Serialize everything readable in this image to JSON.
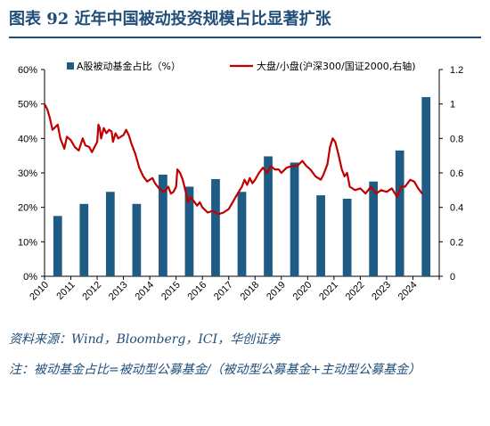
{
  "figure": {
    "title": "图表 92   近年中国被动投资规模占比显著扩张",
    "source": "资料来源：Wind，Bloomberg，ICI，华创证券",
    "note": "注：被动基金占比=被动型公募基金/（被动型公募基金+主动型公募基金）"
  },
  "colors": {
    "bar": "#1f5c85",
    "line": "#c00000",
    "title": "#1f4e79",
    "axis": "#000000"
  },
  "chart_data": {
    "type": "bar",
    "categories": [
      "2010",
      "2011",
      "2012",
      "2013",
      "2014",
      "2015",
      "2016",
      "2017",
      "2018",
      "2019",
      "2020",
      "2021",
      "2022",
      "2023",
      "2024"
    ],
    "series": [
      {
        "name": "A股被动基金占比（%）",
        "type": "bar",
        "axis": "left",
        "values": [
          17.5,
          21,
          24.5,
          21,
          29.5,
          26,
          28.2,
          24.5,
          34.8,
          33,
          23.5,
          22.5,
          27.5,
          36.5,
          52
        ]
      },
      {
        "name": "大盘/小盘(沪深300/国证2000,右轴)",
        "type": "line",
        "axis": "right",
        "points": [
          [
            0.0,
            1.0
          ],
          [
            0.1,
            0.97
          ],
          [
            0.2,
            0.92
          ],
          [
            0.3,
            0.85
          ],
          [
            0.5,
            0.88
          ],
          [
            0.6,
            0.8
          ],
          [
            0.75,
            0.74
          ],
          [
            0.85,
            0.81
          ],
          [
            1.0,
            0.79
          ],
          [
            1.15,
            0.75
          ],
          [
            1.3,
            0.73
          ],
          [
            1.45,
            0.8
          ],
          [
            1.55,
            0.76
          ],
          [
            1.7,
            0.75
          ],
          [
            1.8,
            0.72
          ],
          [
            1.9,
            0.75
          ],
          [
            2.0,
            0.78
          ],
          [
            2.05,
            0.88
          ],
          [
            2.1,
            0.86
          ],
          [
            2.15,
            0.8
          ],
          [
            2.25,
            0.86
          ],
          [
            2.35,
            0.83
          ],
          [
            2.45,
            0.85
          ],
          [
            2.55,
            0.84
          ],
          [
            2.6,
            0.78
          ],
          [
            2.7,
            0.83
          ],
          [
            2.8,
            0.8
          ],
          [
            3.0,
            0.82
          ],
          [
            3.1,
            0.85
          ],
          [
            3.2,
            0.82
          ],
          [
            3.3,
            0.77
          ],
          [
            3.45,
            0.71
          ],
          [
            3.6,
            0.63
          ],
          [
            3.75,
            0.58
          ],
          [
            3.9,
            0.55
          ],
          [
            4.0,
            0.56
          ],
          [
            4.1,
            0.57
          ],
          [
            4.2,
            0.54
          ],
          [
            4.35,
            0.51
          ],
          [
            4.5,
            0.49
          ],
          [
            4.6,
            0.5
          ],
          [
            4.7,
            0.52
          ],
          [
            4.8,
            0.48
          ],
          [
            4.9,
            0.49
          ],
          [
            5.0,
            0.52
          ],
          [
            5.05,
            0.62
          ],
          [
            5.15,
            0.6
          ],
          [
            5.25,
            0.56
          ],
          [
            5.35,
            0.5
          ],
          [
            5.45,
            0.43
          ],
          [
            5.55,
            0.46
          ],
          [
            5.65,
            0.44
          ],
          [
            5.8,
            0.41
          ],
          [
            5.9,
            0.43
          ],
          [
            6.0,
            0.4
          ],
          [
            6.2,
            0.37
          ],
          [
            6.4,
            0.38
          ],
          [
            6.6,
            0.36
          ],
          [
            6.8,
            0.37
          ],
          [
            7.0,
            0.39
          ],
          [
            7.15,
            0.43
          ],
          [
            7.3,
            0.47
          ],
          [
            7.5,
            0.52
          ],
          [
            7.6,
            0.56
          ],
          [
            7.7,
            0.53
          ],
          [
            7.8,
            0.57
          ],
          [
            7.9,
            0.54
          ],
          [
            8.0,
            0.56
          ],
          [
            8.15,
            0.6
          ],
          [
            8.3,
            0.63
          ],
          [
            8.45,
            0.6
          ],
          [
            8.6,
            0.64
          ],
          [
            8.75,
            0.62
          ],
          [
            8.9,
            0.62
          ],
          [
            9.0,
            0.6
          ],
          [
            9.2,
            0.63
          ],
          [
            9.4,
            0.64
          ],
          [
            9.6,
            0.64
          ],
          [
            9.8,
            0.67
          ],
          [
            9.95,
            0.64
          ],
          [
            10.1,
            0.62
          ],
          [
            10.3,
            0.58
          ],
          [
            10.5,
            0.56
          ],
          [
            10.6,
            0.59
          ],
          [
            10.75,
            0.65
          ],
          [
            10.85,
            0.75
          ],
          [
            10.95,
            0.8
          ],
          [
            11.05,
            0.78
          ],
          [
            11.15,
            0.72
          ],
          [
            11.3,
            0.62
          ],
          [
            11.4,
            0.58
          ],
          [
            11.5,
            0.6
          ],
          [
            11.6,
            0.52
          ],
          [
            11.8,
            0.5
          ],
          [
            12.0,
            0.51
          ],
          [
            12.2,
            0.48
          ],
          [
            12.4,
            0.52
          ],
          [
            12.6,
            0.48
          ],
          [
            12.8,
            0.5
          ],
          [
            13.0,
            0.49
          ],
          [
            13.2,
            0.51
          ],
          [
            13.4,
            0.46
          ],
          [
            13.55,
            0.52
          ],
          [
            13.7,
            0.52
          ],
          [
            13.9,
            0.56
          ],
          [
            14.05,
            0.55
          ],
          [
            14.2,
            0.51
          ],
          [
            14.35,
            0.48
          ]
        ]
      }
    ],
    "y_left": {
      "ticks": [
        "0%",
        "10%",
        "20%",
        "30%",
        "40%",
        "50%",
        "60%"
      ],
      "min": 0,
      "max": 60
    },
    "y_right": {
      "ticks": [
        "0",
        "0.2",
        "0.4",
        "0.6",
        "0.8",
        "1",
        "1.2"
      ],
      "min": 0,
      "max": 1.2
    },
    "grid": false,
    "legend_position": "top"
  }
}
